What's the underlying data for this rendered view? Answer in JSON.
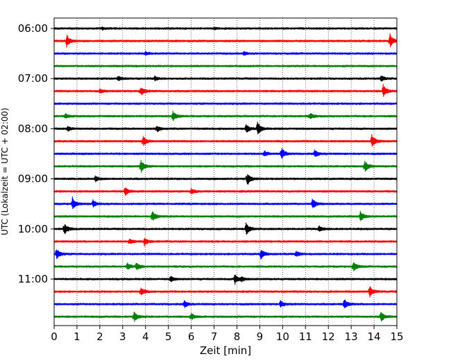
{
  "chart_data": {
    "type": "line",
    "subtype": "helicorder-seismogram",
    "title": "",
    "xlabel": "Zeit  [min]",
    "ylabel": "UTC (Lokalzeit = UTC + 02:00)",
    "xlim": [
      0,
      15
    ],
    "x_ticks": [
      "0",
      "1",
      "2",
      "3",
      "4",
      "5",
      "6",
      "7",
      "8",
      "9",
      "10",
      "11",
      "12",
      "13",
      "14",
      "15"
    ],
    "y_ticks": [
      {
        "label": "06:00",
        "row": 0
      },
      {
        "label": "07:00",
        "row": 4
      },
      {
        "label": "08:00",
        "row": 8
      },
      {
        "label": "09:00",
        "row": 12
      },
      {
        "label": "10:00",
        "row": 16
      },
      {
        "label": "11:00",
        "row": 20
      }
    ],
    "row_minutes": 15,
    "grid": "vertical dotted at each minute",
    "colors": [
      "#000000",
      "#ff0000",
      "#0000ff",
      "#008000"
    ],
    "traces": [
      {
        "start": "06:00",
        "color": "#000000",
        "events": [
          {
            "t": 2.1,
            "a": 0.15
          },
          {
            "t": 7.0,
            "a": 0.12
          }
        ]
      },
      {
        "start": "06:15",
        "color": "#ff0000",
        "events": [
          {
            "t": 0.55,
            "a": 0.9
          },
          {
            "t": 14.7,
            "a": 0.95
          }
        ]
      },
      {
        "start": "06:30",
        "color": "#0000ff",
        "events": [
          {
            "t": 4.0,
            "a": 0.25
          },
          {
            "t": 8.3,
            "a": 0.25
          }
        ]
      },
      {
        "start": "06:45",
        "color": "#008000",
        "events": []
      },
      {
        "start": "07:00",
        "color": "#000000",
        "events": [
          {
            "t": 2.8,
            "a": 0.3
          },
          {
            "t": 4.4,
            "a": 0.3
          },
          {
            "t": 14.3,
            "a": 0.4
          }
        ]
      },
      {
        "start": "07:15",
        "color": "#ff0000",
        "events": [
          {
            "t": 2.0,
            "a": 0.25
          },
          {
            "t": 3.8,
            "a": 0.6
          },
          {
            "t": 14.4,
            "a": 0.9
          }
        ]
      },
      {
        "start": "07:30",
        "color": "#0000ff",
        "events": []
      },
      {
        "start": "07:45",
        "color": "#008000",
        "events": [
          {
            "t": 0.5,
            "a": 0.3
          },
          {
            "t": 5.2,
            "a": 0.8
          },
          {
            "t": 11.2,
            "a": 0.4
          }
        ]
      },
      {
        "start": "08:00",
        "color": "#000000",
        "events": [
          {
            "t": 0.6,
            "a": 0.3
          },
          {
            "t": 4.5,
            "a": 0.4
          },
          {
            "t": 8.4,
            "a": 0.6
          },
          {
            "t": 8.9,
            "a": 1.0
          }
        ]
      },
      {
        "start": "08:15",
        "color": "#ff0000",
        "events": [
          {
            "t": 3.9,
            "a": 0.7
          },
          {
            "t": 13.9,
            "a": 0.9
          }
        ]
      },
      {
        "start": "08:30",
        "color": "#0000ff",
        "events": [
          {
            "t": 9.2,
            "a": 0.35
          },
          {
            "t": 9.95,
            "a": 0.8
          },
          {
            "t": 11.4,
            "a": 0.5
          }
        ]
      },
      {
        "start": "08:45",
        "color": "#008000",
        "events": [
          {
            "t": 3.8,
            "a": 0.9
          },
          {
            "t": 13.6,
            "a": 0.8
          }
        ]
      },
      {
        "start": "09:00",
        "color": "#000000",
        "events": [
          {
            "t": 1.8,
            "a": 0.4
          },
          {
            "t": 8.45,
            "a": 0.9
          }
        ]
      },
      {
        "start": "09:15",
        "color": "#ff0000",
        "events": [
          {
            "t": 3.1,
            "a": 0.6
          },
          {
            "t": 6.0,
            "a": 0.35
          }
        ]
      },
      {
        "start": "09:30",
        "color": "#0000ff",
        "events": [
          {
            "t": 0.8,
            "a": 0.9
          },
          {
            "t": 1.7,
            "a": 0.5
          },
          {
            "t": 11.3,
            "a": 0.8
          }
        ]
      },
      {
        "start": "09:45",
        "color": "#008000",
        "events": [
          {
            "t": 4.3,
            "a": 0.8
          },
          {
            "t": 13.4,
            "a": 0.7
          }
        ]
      },
      {
        "start": "10:00",
        "color": "#000000",
        "events": [
          {
            "t": 0.45,
            "a": 0.8
          },
          {
            "t": 8.4,
            "a": 0.9
          },
          {
            "t": 11.6,
            "a": 0.4
          }
        ]
      },
      {
        "start": "10:15",
        "color": "#ff0000",
        "events": [
          {
            "t": 3.3,
            "a": 0.35
          },
          {
            "t": 3.95,
            "a": 0.6
          }
        ]
      },
      {
        "start": "10:30",
        "color": "#0000ff",
        "events": [
          {
            "t": 0.1,
            "a": 0.8
          },
          {
            "t": 9.05,
            "a": 0.8
          },
          {
            "t": 10.6,
            "a": 0.4
          }
        ]
      },
      {
        "start": "10:45",
        "color": "#008000",
        "events": [
          {
            "t": 3.2,
            "a": 0.45
          },
          {
            "t": 3.6,
            "a": 0.6
          },
          {
            "t": 13.1,
            "a": 0.7
          }
        ]
      },
      {
        "start": "11:00",
        "color": "#000000",
        "events": [
          {
            "t": 5.1,
            "a": 0.4
          },
          {
            "t": 7.9,
            "a": 0.8
          },
          {
            "t": 8.2,
            "a": 0.3
          }
        ]
      },
      {
        "start": "11:15",
        "color": "#ff0000",
        "events": [
          {
            "t": 3.8,
            "a": 0.6
          },
          {
            "t": 13.8,
            "a": 0.8
          }
        ]
      },
      {
        "start": "11:30",
        "color": "#0000ff",
        "events": [
          {
            "t": 5.7,
            "a": 0.45
          },
          {
            "t": 9.9,
            "a": 0.5
          },
          {
            "t": 12.7,
            "a": 0.7
          }
        ]
      },
      {
        "start": "11:45",
        "color": "#008000",
        "events": [
          {
            "t": 3.5,
            "a": 0.7
          },
          {
            "t": 6.0,
            "a": 0.45
          },
          {
            "t": 14.3,
            "a": 0.7
          }
        ]
      }
    ]
  }
}
